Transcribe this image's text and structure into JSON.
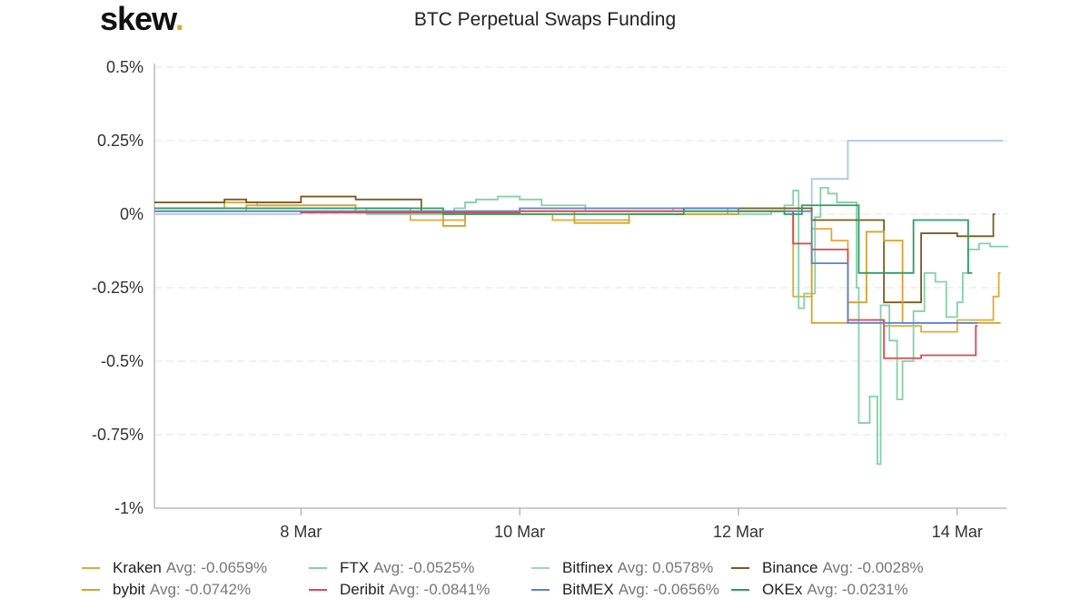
{
  "logo": {
    "text": "skew",
    "dot": "."
  },
  "chart_data": {
    "type": "line",
    "title": "BTC Perpetual Swaps Funding",
    "xlabel": "",
    "ylabel": "",
    "x_unit": "day of March",
    "xlim": [
      6.66,
      14.45
    ],
    "ylim": [
      -1,
      0.5
    ],
    "yticks": [
      0.5,
      0.25,
      0,
      -0.25,
      -0.5,
      -0.75,
      -1
    ],
    "ytick_labels": [
      "0.5%",
      "0.25%",
      "0%",
      "-0.25%",
      "-0.5%",
      "-0.75%",
      "-1%"
    ],
    "xticks": [
      8,
      10,
      12,
      14
    ],
    "xtick_labels": [
      "8 Mar",
      "10 Mar",
      "12 Mar",
      "14 Mar"
    ],
    "grid": true,
    "legend_position": "bottom",
    "step": true,
    "series": [
      {
        "name": "Kraken",
        "avg": "Avg: -0.0659%",
        "color": "#e3a93a",
        "points": [
          [
            6.66,
            0.02
          ],
          [
            7.3,
            0.04
          ],
          [
            7.6,
            0.03
          ],
          [
            8.5,
            0.02
          ],
          [
            9.0,
            -0.02
          ],
          [
            9.5,
            0.0
          ],
          [
            10.3,
            -0.02
          ],
          [
            11.0,
            0.0
          ],
          [
            12.0,
            0.01
          ],
          [
            12.5,
            -0.28
          ],
          [
            12.67,
            -0.05
          ],
          [
            12.85,
            -0.09
          ],
          [
            13.0,
            -0.36
          ],
          [
            13.33,
            -0.38
          ],
          [
            13.67,
            -0.4
          ],
          [
            14.0,
            -0.36
          ],
          [
            14.33,
            -0.28
          ],
          [
            14.38,
            -0.2
          ]
        ]
      },
      {
        "name": "FTX",
        "avg": "Avg: -0.0525%",
        "color": "#86d0a8",
        "points": [
          [
            6.66,
            0.01
          ],
          [
            7.5,
            0.02
          ],
          [
            8.6,
            0.0
          ],
          [
            9.4,
            0.02
          ],
          [
            9.5,
            0.04
          ],
          [
            9.6,
            0.05
          ],
          [
            9.8,
            0.06
          ],
          [
            10.0,
            0.05
          ],
          [
            10.2,
            0.03
          ],
          [
            10.6,
            0.01
          ],
          [
            11.0,
            0.01
          ],
          [
            11.4,
            0.02
          ],
          [
            11.9,
            0.0
          ],
          [
            12.3,
            0.01
          ],
          [
            12.42,
            0.03
          ],
          [
            12.5,
            0.08
          ],
          [
            12.55,
            -0.32
          ],
          [
            12.6,
            -0.27
          ],
          [
            12.7,
            -0.01
          ],
          [
            12.75,
            0.09
          ],
          [
            12.82,
            0.07
          ],
          [
            12.9,
            0.04
          ],
          [
            13.05,
            0.04
          ],
          [
            13.08,
            -0.25
          ],
          [
            13.1,
            -0.71
          ],
          [
            13.2,
            -0.62
          ],
          [
            13.27,
            -0.85
          ],
          [
            13.3,
            -0.31
          ],
          [
            13.38,
            -0.43
          ],
          [
            13.45,
            -0.63
          ],
          [
            13.5,
            -0.5
          ],
          [
            13.6,
            -0.33
          ],
          [
            13.7,
            -0.2
          ],
          [
            13.8,
            -0.23
          ],
          [
            13.9,
            -0.35
          ],
          [
            14.0,
            -0.3
          ],
          [
            14.05,
            -0.2
          ],
          [
            14.1,
            -0.12
          ],
          [
            14.2,
            -0.1
          ],
          [
            14.3,
            -0.11
          ],
          [
            14.45,
            -0.11
          ]
        ]
      },
      {
        "name": "Bitfinex",
        "avg": "Avg: 0.0578%",
        "color": "#a8c8ec",
        "points": [
          [
            6.66,
            0.0
          ],
          [
            8.0,
            0.01
          ],
          [
            10.0,
            0.01
          ],
          [
            12.0,
            0.01
          ],
          [
            12.67,
            0.12
          ],
          [
            13.0,
            0.25
          ],
          [
            14.4,
            0.25
          ]
        ]
      },
      {
        "name": "Binance",
        "avg": "Avg: -0.0028%",
        "color": "#7b5b20",
        "points": [
          [
            6.66,
            0.04
          ],
          [
            7.3,
            0.05
          ],
          [
            7.5,
            0.04
          ],
          [
            8.0,
            0.06
          ],
          [
            8.5,
            0.05
          ],
          [
            9.1,
            0.01
          ],
          [
            10.0,
            0.01
          ],
          [
            11.5,
            0.02
          ],
          [
            11.8,
            0.02
          ],
          [
            12.3,
            0.02
          ],
          [
            12.67,
            -0.02
          ],
          [
            13.33,
            -0.3
          ],
          [
            13.67,
            -0.065
          ],
          [
            14.0,
            -0.075
          ],
          [
            14.33,
            0.0
          ]
        ]
      },
      {
        "name": "bybit",
        "avg": "Avg: -0.0742%",
        "color": "#d6a232",
        "points": [
          [
            6.66,
            0.02
          ],
          [
            7.5,
            0.03
          ],
          [
            8.5,
            0.01
          ],
          [
            9.3,
            -0.04
          ],
          [
            9.5,
            0.01
          ],
          [
            10.5,
            -0.03
          ],
          [
            11.0,
            0.0
          ],
          [
            12.0,
            0.01
          ],
          [
            12.5,
            -0.1
          ],
          [
            12.67,
            -0.37
          ],
          [
            13.0,
            -0.3
          ],
          [
            13.17,
            -0.06
          ],
          [
            13.33,
            -0.09
          ],
          [
            13.5,
            -0.37
          ],
          [
            14.0,
            -0.37
          ],
          [
            14.38,
            -0.37
          ]
        ]
      },
      {
        "name": "Deribit",
        "avg": "Avg: -0.0841%",
        "color": "#e2474d",
        "points": [
          [
            6.66,
            0.01
          ],
          [
            8.0,
            0.005
          ],
          [
            10.0,
            0.01
          ],
          [
            12.0,
            0.01
          ],
          [
            12.5,
            -0.1
          ],
          [
            12.67,
            -0.12
          ],
          [
            13.0,
            -0.36
          ],
          [
            13.33,
            -0.49
          ],
          [
            13.67,
            -0.48
          ],
          [
            14.17,
            -0.38
          ]
        ]
      },
      {
        "name": "BitMEX",
        "avg": "Avg: -0.0656%",
        "color": "#5b84c8",
        "points": [
          [
            6.66,
            0.01
          ],
          [
            8.0,
            0.01
          ],
          [
            10.0,
            0.02
          ],
          [
            12.0,
            0.01
          ],
          [
            12.67,
            -0.167
          ],
          [
            13.0,
            -0.37
          ],
          [
            14.17,
            -0.37
          ]
        ]
      },
      {
        "name": "OKEx",
        "avg": "Avg: -0.0231%",
        "color": "#2f9e60",
        "points": [
          [
            6.66,
            0.02
          ],
          [
            8.0,
            0.02
          ],
          [
            9.3,
            0.0
          ],
          [
            10.0,
            0.0
          ],
          [
            11.5,
            0.01
          ],
          [
            12.0,
            0.01
          ],
          [
            12.42,
            0.0
          ],
          [
            12.58,
            0.03
          ],
          [
            12.8,
            0.03
          ],
          [
            13.1,
            -0.2
          ],
          [
            13.6,
            -0.02
          ],
          [
            14.1,
            -0.2
          ],
          [
            14.12,
            -0.2
          ]
        ]
      }
    ]
  }
}
